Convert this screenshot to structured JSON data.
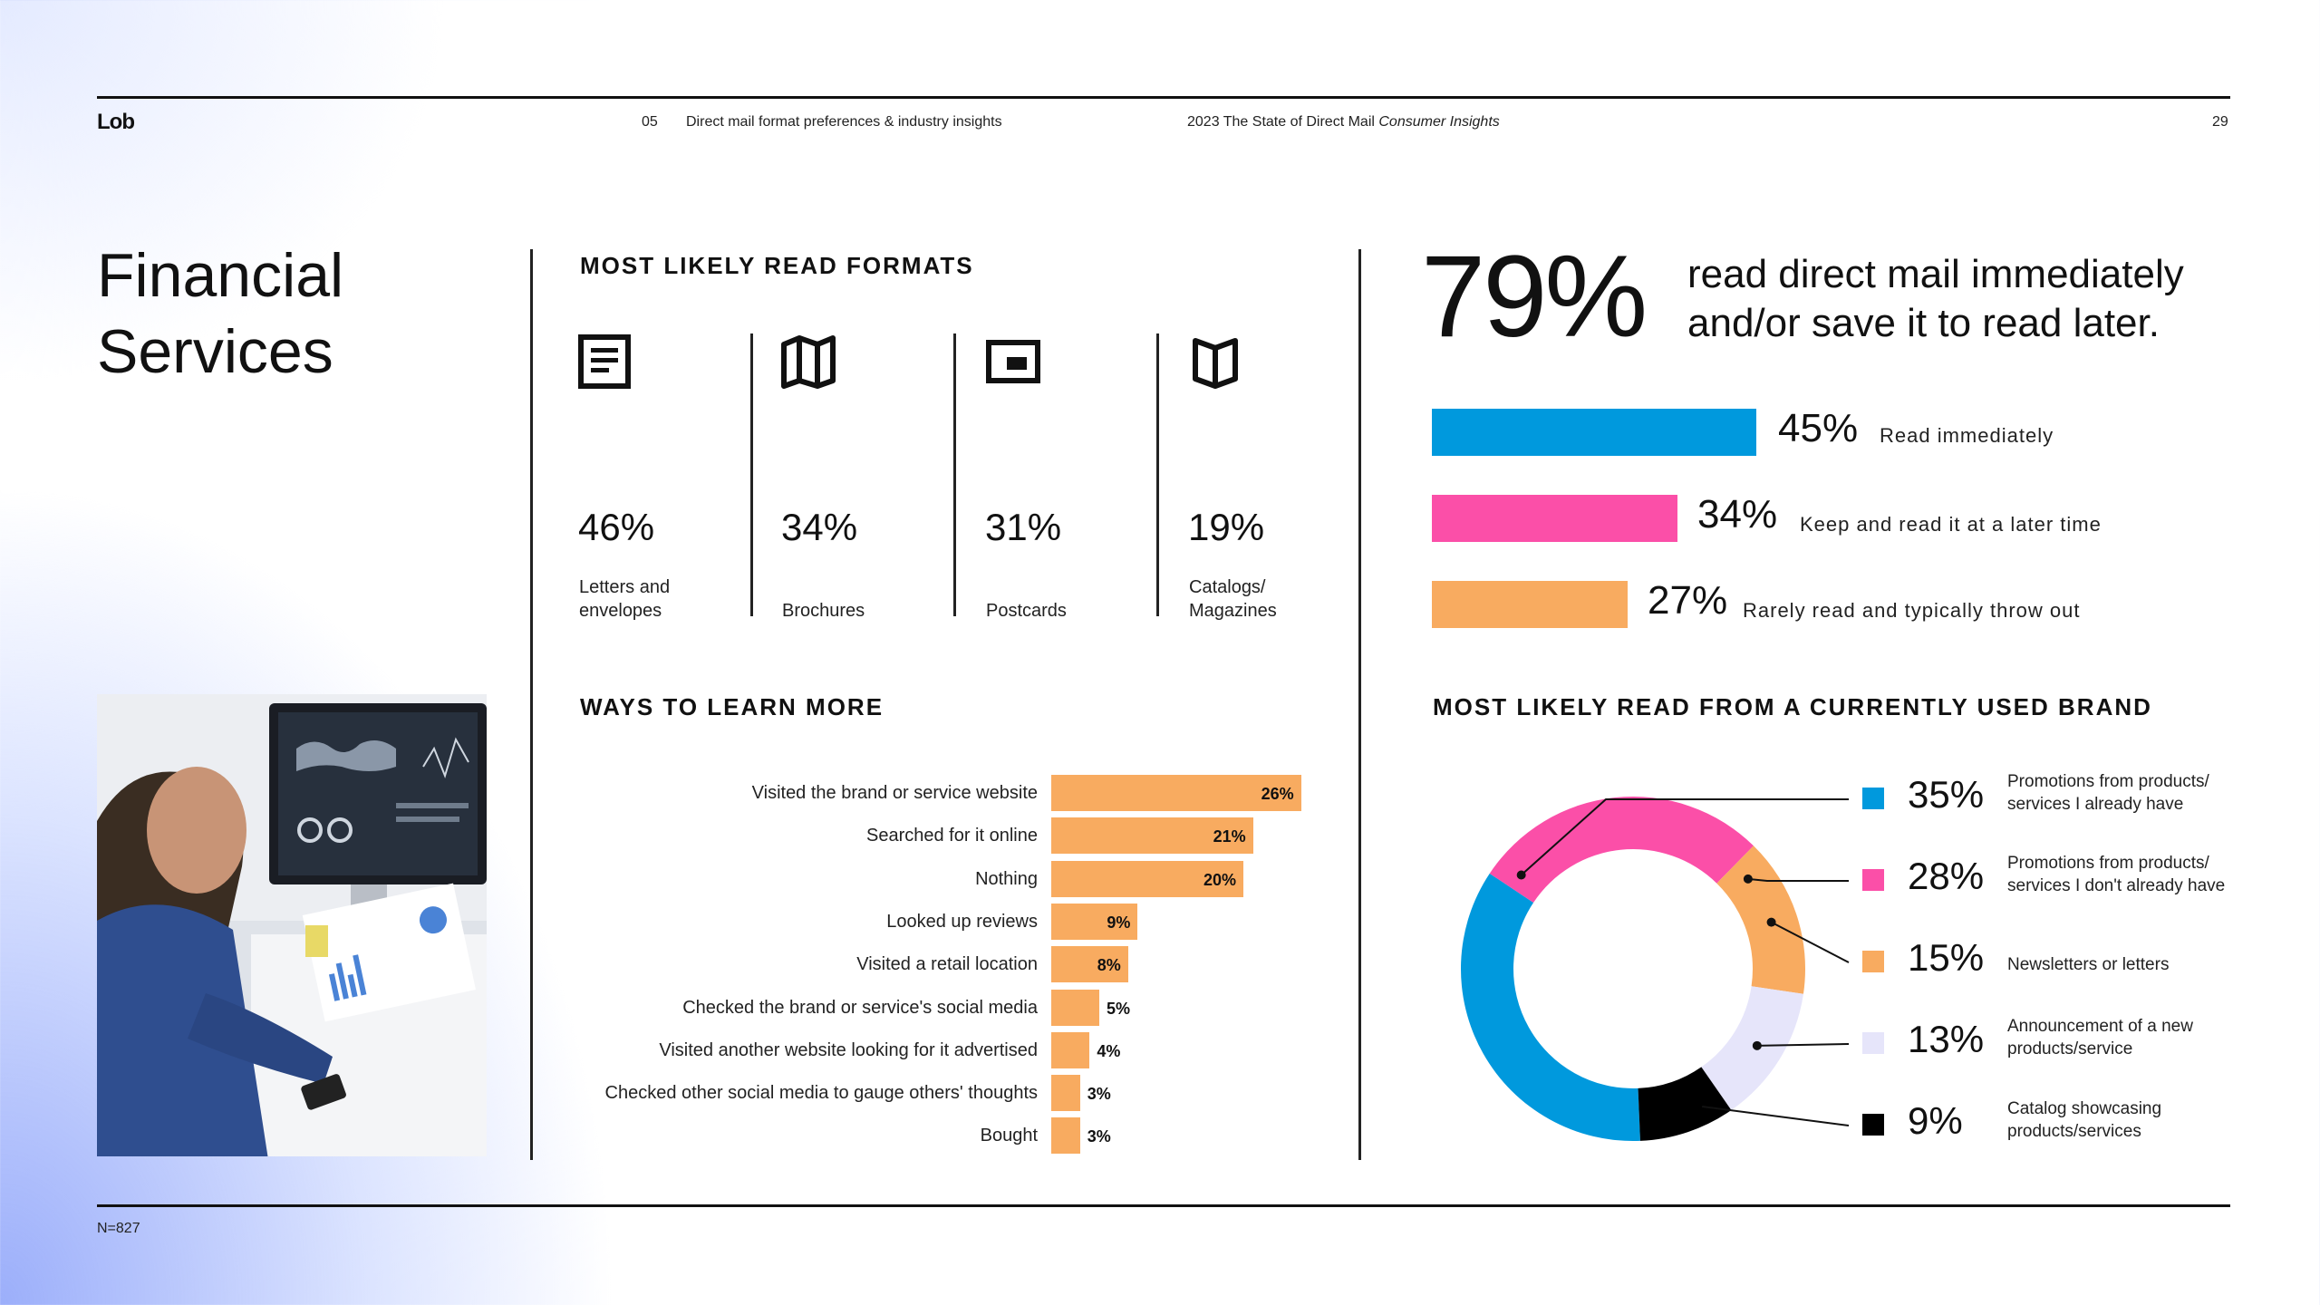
{
  "header": {
    "logo": "Lob",
    "section_number": "05",
    "section_title": "Direct mail format preferences & industry insights",
    "report_title": "2023 The State of Direct Mail",
    "report_title_italic": "Consumer Insights",
    "page_number": "29"
  },
  "page_title_line1": "Financial",
  "page_title_line2": "Services",
  "footer_note": "N=827",
  "formats": {
    "title": "MOST LIKELY READ FORMATS",
    "items": [
      {
        "icon": "letter-icon",
        "value": "46%",
        "label": "Letters and\nenvelopes"
      },
      {
        "icon": "brochure-icon",
        "value": "34%",
        "label": "Brochures"
      },
      {
        "icon": "postcard-icon",
        "value": "31%",
        "label": "Postcards"
      },
      {
        "icon": "catalog-icon",
        "value": "19%",
        "label": "Catalogs/\nMagazines"
      }
    ]
  },
  "read_stat": {
    "headline_pct": "79%",
    "headline_text_line1": "read direct mail immediately",
    "headline_text_line2": "and/or save it to read later.",
    "bars": [
      {
        "value": "45%",
        "label": "Read immediately"
      },
      {
        "value": "34%",
        "label": "Keep and read it at a later time"
      },
      {
        "value": "27%",
        "label": "Rarely read and typically throw out"
      }
    ]
  },
  "ways_title": "WAYS TO LEARN MORE",
  "donut_title": "MOST LIKELY READ FROM A CURRENTLY USED BRAND",
  "donut_legend": [
    {
      "value": "35%",
      "label": "Promotions from products/\nservices I already have"
    },
    {
      "value": "28%",
      "label": "Promotions from products/\nservices I don't already have"
    },
    {
      "value": "15%",
      "label": "Newsletters or letters"
    },
    {
      "value": "13%",
      "label": "Announcement of a new\nproducts/service"
    },
    {
      "value": "9%",
      "label": "Catalog showcasing\nproducts/services"
    }
  ],
  "colors": {
    "blue": "#0099dd",
    "pink": "#fb4fa8",
    "orange": "#f8ab60",
    "lavender": "#e6e5fa",
    "black": "#000000"
  },
  "chart_data": [
    {
      "type": "bar",
      "title": "WAYS TO LEARN MORE",
      "orientation": "horizontal",
      "categories": [
        "Visited the brand or service website",
        "Searched for it online",
        "Nothing",
        "Looked up reviews",
        "Visited a retail location",
        "Checked the brand or service's social media",
        "Visited another website looking for it advertised",
        "Checked other social media to gauge others' thoughts",
        "Bought"
      ],
      "values": [
        26,
        21,
        20,
        9,
        8,
        5,
        4,
        3,
        3
      ],
      "value_labels": [
        "26%",
        "21%",
        "20%",
        "9%",
        "8%",
        "5%",
        "4%",
        "3%",
        "3%"
      ]
    },
    {
      "type": "bar",
      "orientation": "horizontal",
      "categories": [
        "Read immediately",
        "Keep and read it at a later time",
        "Rarely read and typically throw out"
      ],
      "values": [
        45,
        34,
        27
      ]
    },
    {
      "type": "pie",
      "title": "MOST LIKELY READ FROM A CURRENTLY USED BRAND",
      "donut": true,
      "categories": [
        "Promotions from products/ services I already have",
        "Promotions from products/ services I don't already have",
        "Newsletters or letters",
        "Announcement of a new products/service",
        "Catalog showcasing products/services"
      ],
      "values": [
        35,
        28,
        15,
        13,
        9
      ]
    }
  ]
}
